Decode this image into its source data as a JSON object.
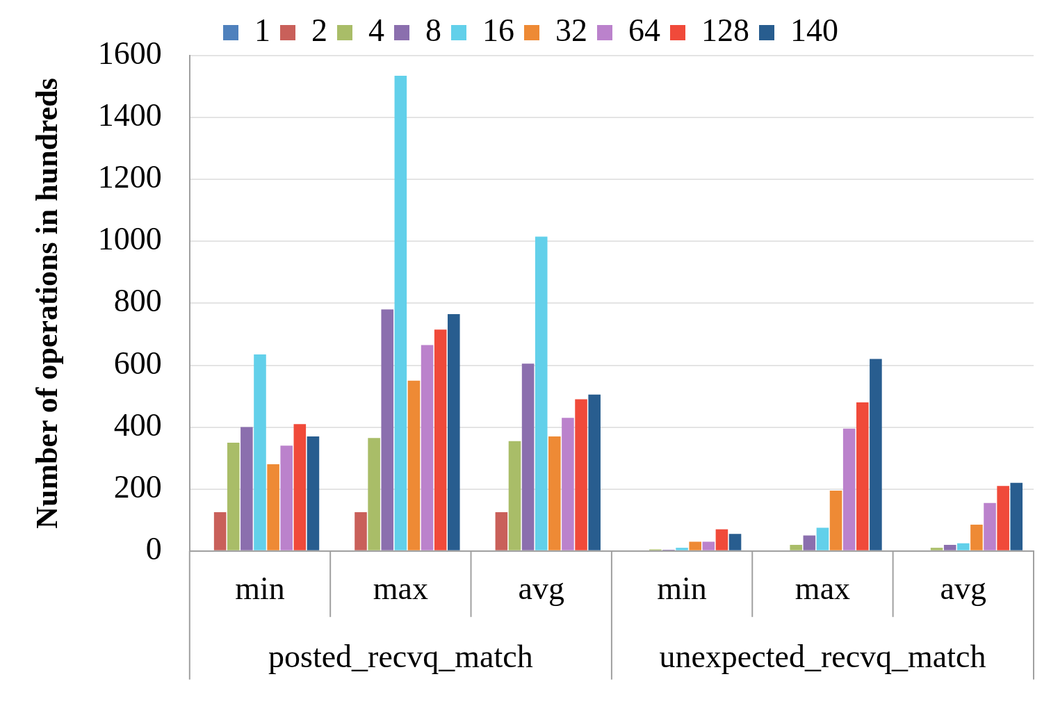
{
  "chart_data": {
    "type": "bar",
    "ylabel": "Number of operations in hundreds",
    "categories": [
      "min",
      "max",
      "avg",
      "min",
      "max",
      "avg"
    ],
    "annotations": [
      "posted_recvq_match",
      "unexpected_recvq_match"
    ],
    "series": [
      {
        "name": "1",
        "color": "#4f81bd",
        "values": [
          0,
          0,
          0,
          0,
          0,
          0
        ]
      },
      {
        "name": "2",
        "color": "#c9605a",
        "values": [
          125,
          125,
          125,
          0,
          null,
          null
        ]
      },
      {
        "name": "4",
        "color": "#a9bd68",
        "values": [
          350,
          365,
          355,
          5,
          20,
          10
        ]
      },
      {
        "name": "8",
        "color": "#8b6fae",
        "values": [
          400,
          780,
          605,
          4,
          50,
          20
        ]
      },
      {
        "name": "16",
        "color": "#62d0ea",
        "values": [
          635,
          1535,
          1015,
          10,
          75,
          25
        ]
      },
      {
        "name": "32",
        "color": "#ee8a35",
        "values": [
          280,
          550,
          370,
          30,
          195,
          85
        ]
      },
      {
        "name": "64",
        "color": "#bb82cc",
        "values": [
          340,
          665,
          430,
          30,
          395,
          155
        ]
      },
      {
        "name": "128",
        "color": "#f04a3a",
        "values": [
          410,
          715,
          490,
          70,
          480,
          210
        ]
      },
      {
        "name": "140",
        "color": "#285d8f",
        "values": [
          370,
          765,
          505,
          55,
          620,
          220
        ]
      }
    ],
    "ylim": [
      0,
      1600
    ],
    "yticks": [
      0,
      200,
      400,
      600,
      800,
      1000,
      1200,
      1400,
      1600
    ],
    "grid": "y",
    "legend": "top"
  }
}
